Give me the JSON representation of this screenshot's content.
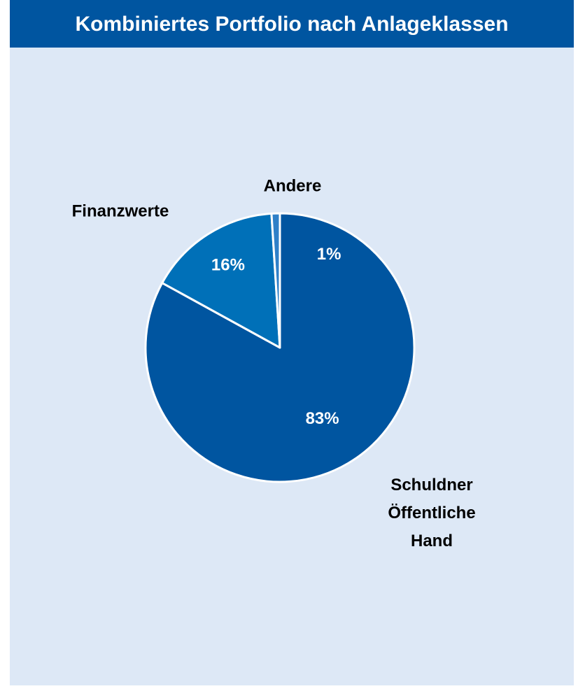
{
  "chart_data": {
    "type": "pie",
    "title": "Kombiniertes Portfolio nach Anlageklassen",
    "categories": [
      "Schuldner Öffentliche Hand",
      "Finanzwerte",
      "Andere"
    ],
    "values": [
      83,
      16,
      1
    ],
    "value_labels": [
      "83%",
      "16%",
      "1%"
    ],
    "colors": [
      "#0055a0",
      "#0070b8",
      "#2f80c8"
    ]
  }
}
